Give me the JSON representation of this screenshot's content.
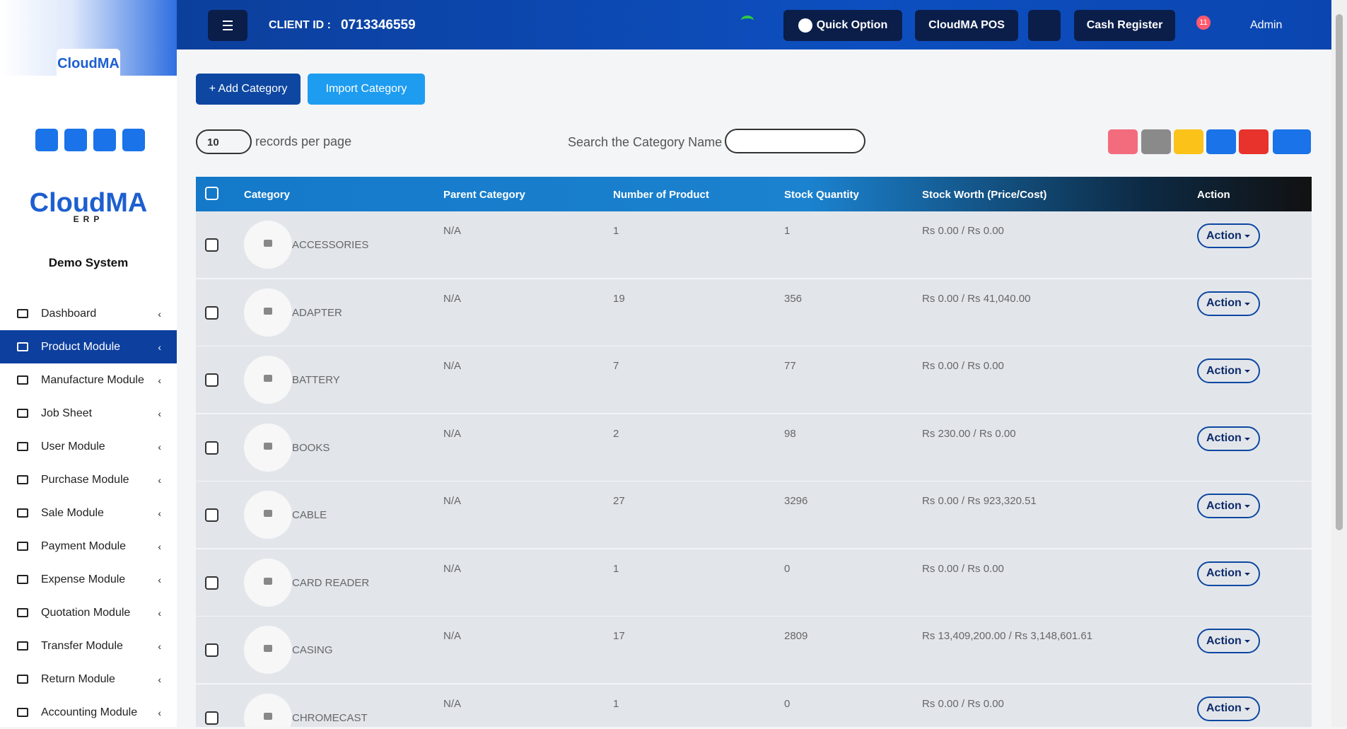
{
  "header": {
    "client_id_label": "CLIENT ID :",
    "client_id": "0713346559",
    "quick_option": "Quick Option",
    "pos": "CloudMA POS",
    "cash_register": "Cash Register",
    "notifications": "11",
    "user": "Admin"
  },
  "sidebar": {
    "logo": "CloudMA",
    "logo_sub": "ERP",
    "company": "Demo System",
    "menu": [
      "Dashboard",
      "Product Module",
      "Manufacture Module",
      "Job Sheet",
      "User Module",
      "Purchase Module",
      "Sale Module",
      "Payment Module",
      "Expense Module",
      "Quotation Module",
      "Transfer Module",
      "Return Module",
      "Accounting Module"
    ]
  },
  "toolbar": {
    "add": "+ Add Category",
    "import": "Import Category",
    "records": "10",
    "records_label": "records per page",
    "search_label": "Search the Category Name"
  },
  "table": {
    "headers": [
      "Category",
      "Parent Category",
      "Number of Product",
      "Stock Quantity",
      "Stock Worth (Price/Cost)",
      "Action"
    ],
    "rows": [
      [
        "ACCESSORIES",
        "N/A",
        1,
        1,
        "Rs 0.00 / Rs 0.00",
        "Action"
      ],
      [
        "ADAPTER",
        "N/A",
        19,
        356,
        "Rs 0.00 / Rs 41,040.00",
        "Action"
      ],
      [
        "BATTERY",
        "N/A",
        7,
        77,
        "Rs 0.00 / Rs 0.00",
        "Action"
      ],
      [
        "BOOKS",
        "N/A",
        2,
        98,
        "Rs 230.00 / Rs 0.00",
        "Action"
      ],
      [
        "CABLE",
        "N/A",
        27,
        3296,
        "Rs 0.00 / Rs 923,320.51",
        "Action"
      ],
      [
        "CARD READER",
        "N/A",
        1,
        0,
        "Rs 0.00 / Rs 0.00",
        "Action"
      ],
      [
        "CASING",
        "N/A",
        17,
        2809,
        "Rs 13,409,200.00 / Rs 3,148,601.61",
        "Action"
      ],
      [
        "CHROMECAST",
        "N/A",
        1,
        0,
        "Rs 0.00 / Rs 0.00",
        "Action"
      ]
    ]
  }
}
